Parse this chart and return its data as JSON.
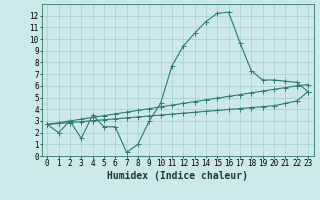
{
  "xlabel": "Humidex (Indice chaleur)",
  "bg_color": "#cce8ea",
  "grid_color": "#aacdd0",
  "line_color": "#2d7a6e",
  "x": [
    0,
    1,
    2,
    3,
    4,
    5,
    6,
    7,
    8,
    9,
    10,
    11,
    12,
    13,
    14,
    15,
    16,
    17,
    18,
    19,
    20,
    21,
    22,
    23
  ],
  "y_main": [
    2.7,
    2.0,
    3.0,
    1.5,
    3.5,
    2.5,
    2.5,
    0.3,
    1.0,
    3.0,
    4.5,
    7.7,
    9.4,
    10.5,
    11.5,
    12.2,
    12.3,
    9.7,
    7.3,
    6.5,
    6.5,
    6.4,
    6.3,
    5.5
  ],
  "y_upper": [
    2.7,
    2.85,
    3.0,
    3.15,
    3.3,
    3.45,
    3.6,
    3.75,
    3.9,
    4.05,
    4.2,
    4.35,
    4.5,
    4.65,
    4.8,
    4.95,
    5.1,
    5.25,
    5.4,
    5.55,
    5.7,
    5.85,
    6.0,
    6.1
  ],
  "y_lower": [
    2.7,
    2.78,
    2.86,
    2.94,
    3.02,
    3.1,
    3.18,
    3.26,
    3.34,
    3.42,
    3.5,
    3.58,
    3.66,
    3.74,
    3.82,
    3.9,
    3.98,
    4.06,
    4.14,
    4.22,
    4.3,
    4.5,
    4.7,
    5.5
  ],
  "xlim": [
    -0.5,
    23.5
  ],
  "ylim": [
    0,
    13
  ],
  "yticks": [
    0,
    1,
    2,
    3,
    4,
    5,
    6,
    7,
    8,
    9,
    10,
    11,
    12
  ],
  "xticks": [
    0,
    1,
    2,
    3,
    4,
    5,
    6,
    7,
    8,
    9,
    10,
    11,
    12,
    13,
    14,
    15,
    16,
    17,
    18,
    19,
    20,
    21,
    22,
    23
  ],
  "xlabel_fontsize": 7,
  "tick_fontsize": 5.5,
  "markersize": 2.0,
  "linewidth": 0.8
}
